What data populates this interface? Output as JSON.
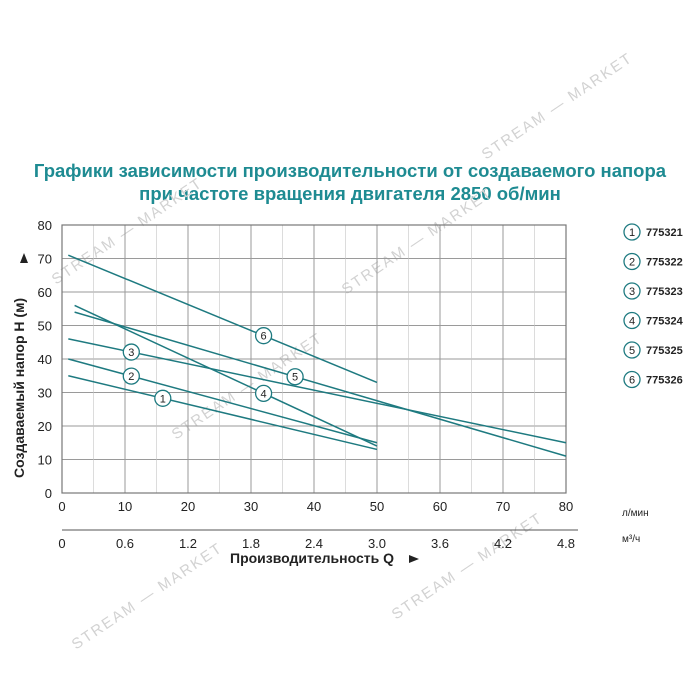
{
  "chart_data": {
    "type": "line",
    "title": "Графики зависимости производительности от создаваемого напора",
    "subtitle": "при частоте вращения двигателя 2850 об/мин",
    "xlabel": "Производительность Q",
    "ylabel": "Создаваемый напор H (м)",
    "x_unit_top": "л/мин",
    "x_unit_bottom": "м³/ч",
    "x_ticks_lpm": [
      "0",
      "10",
      "20",
      "30",
      "40",
      "50",
      "60",
      "70",
      "80"
    ],
    "x_ticks_m3h": [
      "0",
      "0.6",
      "1.2",
      "1.8",
      "2.4",
      "3.0",
      "3.6",
      "4.2",
      "4.8"
    ],
    "y_ticks": [
      "0",
      "10",
      "20",
      "30",
      "40",
      "50",
      "60",
      "70",
      "80"
    ],
    "xlim": [
      0,
      80
    ],
    "ylim": [
      0,
      80
    ],
    "grid": true,
    "legend_position": "right",
    "line_color": "#1e7a80",
    "watermark": "STREAM — MARKET",
    "series": [
      {
        "name": "775321",
        "label": "1",
        "x": [
          1,
          50
        ],
        "y": [
          35,
          13
        ],
        "label_at": 16
      },
      {
        "name": "775322",
        "label": "2",
        "x": [
          1,
          50
        ],
        "y": [
          40,
          15
        ],
        "label_at": 11
      },
      {
        "name": "775323",
        "label": "3",
        "x": [
          1,
          80
        ],
        "y": [
          46,
          15
        ],
        "label_at": 11
      },
      {
        "name": "775324",
        "label": "4",
        "x": [
          2,
          50
        ],
        "y": [
          56,
          14
        ],
        "label_at": 32
      },
      {
        "name": "775325",
        "label": "5",
        "x": [
          2,
          80
        ],
        "y": [
          54,
          11
        ],
        "label_at": 37
      },
      {
        "name": "775326",
        "label": "6",
        "x": [
          1,
          50
        ],
        "y": [
          71,
          33
        ],
        "label_at": 32
      }
    ]
  }
}
